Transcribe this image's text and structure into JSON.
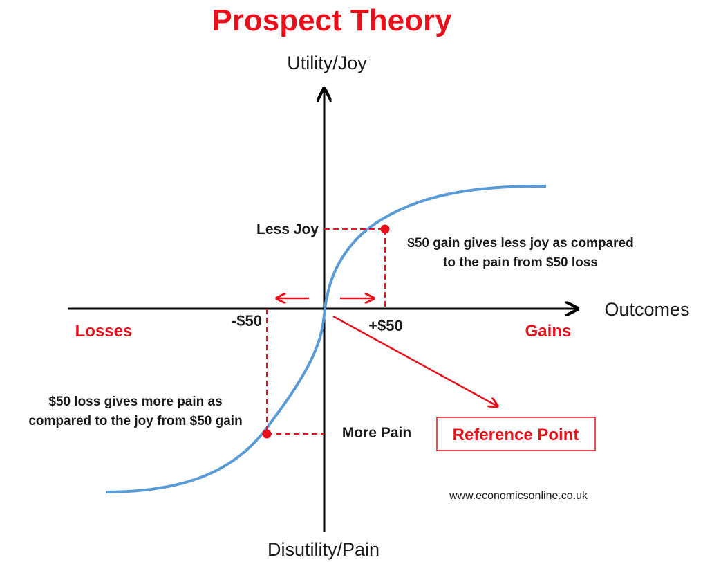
{
  "title": "Prospect Theory",
  "y_axis_top_label": "Utility/Joy",
  "y_axis_bottom_label": "Disutility/Pain",
  "x_axis_label": "Outcomes",
  "losses_label": "Losses",
  "gains_label": "Gains",
  "loss_tick": "-$50",
  "gain_tick": "+$50",
  "less_joy_label": "Less Joy",
  "more_pain_label": "More Pain",
  "gain_note": {
    "line1": "$50 gain gives less joy as compared",
    "line2": "to the pain from $50 loss"
  },
  "loss_note": {
    "line1": "$50 loss gives more pain as",
    "line2": "compared to the joy from $50 gain"
  },
  "reference_point_label": "Reference Point",
  "credit": "www.economicsonline.co.uk",
  "colors": {
    "title": "#e8101a",
    "curve": "#5b9bd5",
    "accent": "#e8101a",
    "axis": "#000000",
    "text": "#1a1a1a"
  }
}
